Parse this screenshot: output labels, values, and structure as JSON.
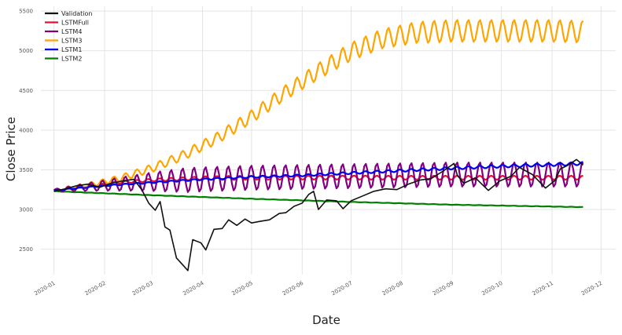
{
  "chart_data": {
    "type": "line",
    "xlabel": "Date",
    "ylabel": "Close Price",
    "x_ticks": [
      "2020-01",
      "2020-02",
      "2020-03",
      "2020-04",
      "2020-05",
      "2020-06",
      "2020-07",
      "2020-08",
      "2020-09",
      "2020-10",
      "2020-11",
      "2020-12"
    ],
    "y_ticks": [
      2500,
      3000,
      3500,
      4000,
      4500,
      5000,
      5500
    ],
    "xlim": [
      "2019-12-24",
      "2020-12-10"
    ],
    "ylim": [
      2180,
      5560
    ],
    "grid": true,
    "legend_position": "top-left",
    "series": [
      {
        "name": "Validation",
        "color": "#111111",
        "points": [
          [
            "2020-01-01",
            3230
          ],
          [
            "2020-01-08",
            3260
          ],
          [
            "2020-01-15",
            3300
          ],
          [
            "2020-01-22",
            3320
          ],
          [
            "2020-01-29",
            3280
          ],
          [
            "2020-02-05",
            3330
          ],
          [
            "2020-02-12",
            3360
          ],
          [
            "2020-02-19",
            3380
          ],
          [
            "2020-02-24",
            3240
          ],
          [
            "2020-02-28",
            3080
          ],
          [
            "2020-03-03",
            2990
          ],
          [
            "2020-03-06",
            3100
          ],
          [
            "2020-03-09",
            2780
          ],
          [
            "2020-03-12",
            2740
          ],
          [
            "2020-03-16",
            2390
          ],
          [
            "2020-03-20",
            2300
          ],
          [
            "2020-03-23",
            2230
          ],
          [
            "2020-03-26",
            2620
          ],
          [
            "2020-03-31",
            2580
          ],
          [
            "2020-04-03",
            2490
          ],
          [
            "2020-04-08",
            2750
          ],
          [
            "2020-04-13",
            2760
          ],
          [
            "2020-04-17",
            2870
          ],
          [
            "2020-04-22",
            2800
          ],
          [
            "2020-04-27",
            2880
          ],
          [
            "2020-05-01",
            2830
          ],
          [
            "2020-05-06",
            2850
          ],
          [
            "2020-05-12",
            2870
          ],
          [
            "2020-05-18",
            2950
          ],
          [
            "2020-05-22",
            2960
          ],
          [
            "2020-05-27",
            3040
          ],
          [
            "2020-06-01",
            3080
          ],
          [
            "2020-06-05",
            3190
          ],
          [
            "2020-06-08",
            3230
          ],
          [
            "2020-06-11",
            3000
          ],
          [
            "2020-06-16",
            3120
          ],
          [
            "2020-06-22",
            3110
          ],
          [
            "2020-06-26",
            3010
          ],
          [
            "2020-07-01",
            3110
          ],
          [
            "2020-07-08",
            3170
          ],
          [
            "2020-07-15",
            3230
          ],
          [
            "2020-07-22",
            3260
          ],
          [
            "2020-07-29",
            3250
          ],
          [
            "2020-08-05",
            3320
          ],
          [
            "2020-08-12",
            3370
          ],
          [
            "2020-08-19",
            3390
          ],
          [
            "2020-08-26",
            3480
          ],
          [
            "2020-09-02",
            3580
          ],
          [
            "2020-09-04",
            3430
          ],
          [
            "2020-09-08",
            3330
          ],
          [
            "2020-09-15",
            3400
          ],
          [
            "2020-09-23",
            3240
          ],
          [
            "2020-09-30",
            3360
          ],
          [
            "2020-10-07",
            3420
          ],
          [
            "2020-10-12",
            3530
          ],
          [
            "2020-10-20",
            3440
          ],
          [
            "2020-10-28",
            3270
          ],
          [
            "2020-11-03",
            3370
          ],
          [
            "2020-11-06",
            3510
          ],
          [
            "2020-11-10",
            3550
          ],
          [
            "2020-11-16",
            3630
          ],
          [
            "2020-11-20",
            3560
          ]
        ]
      },
      {
        "name": "LSTMFull",
        "color": "#e8112d",
        "points": [
          [
            "2020-01-01",
            3240
          ],
          [
            "2020-01-20",
            3290
          ],
          [
            "2020-02-10",
            3340
          ],
          [
            "2020-03-01",
            3370
          ],
          [
            "2020-04-01",
            3395
          ],
          [
            "2020-05-01",
            3400
          ],
          [
            "2020-06-01",
            3402
          ],
          [
            "2020-07-01",
            3402
          ],
          [
            "2020-08-01",
            3400
          ],
          [
            "2020-09-01",
            3400
          ],
          [
            "2020-10-01",
            3400
          ],
          [
            "2020-11-20",
            3400
          ]
        ]
      },
      {
        "name": "LSTM4",
        "color": "#800080",
        "points": [
          [
            "2020-01-01",
            3240
          ],
          [
            "2020-01-20",
            3280
          ],
          [
            "2020-02-10",
            3320
          ],
          [
            "2020-03-01",
            3350
          ],
          [
            "2020-04-01",
            3380
          ],
          [
            "2020-05-01",
            3400
          ],
          [
            "2020-06-01",
            3410
          ],
          [
            "2020-07-01",
            3420
          ],
          [
            "2020-08-01",
            3430
          ],
          [
            "2020-09-01",
            3440
          ],
          [
            "2020-10-01",
            3440
          ],
          [
            "2020-11-20",
            3440
          ]
        ]
      },
      {
        "name": "LSTM3",
        "color": "#ffa500",
        "points": [
          [
            "2020-01-01",
            3240
          ],
          [
            "2020-01-20",
            3300
          ],
          [
            "2020-02-10",
            3390
          ],
          [
            "2020-03-01",
            3520
          ],
          [
            "2020-03-20",
            3680
          ],
          [
            "2020-04-10",
            3900
          ],
          [
            "2020-05-01",
            4170
          ],
          [
            "2020-05-20",
            4450
          ],
          [
            "2020-06-10",
            4730
          ],
          [
            "2020-07-01",
            4990
          ],
          [
            "2020-07-20",
            5150
          ],
          [
            "2020-08-10",
            5230
          ],
          [
            "2020-09-01",
            5250
          ],
          [
            "2020-10-01",
            5250
          ],
          [
            "2020-11-01",
            5250
          ],
          [
            "2020-11-20",
            5240
          ]
        ]
      },
      {
        "name": "LSTM1",
        "color": "#0000ee",
        "points": [
          [
            "2020-01-01",
            3240
          ],
          [
            "2020-02-01",
            3300
          ],
          [
            "2020-03-01",
            3340
          ],
          [
            "2020-04-01",
            3380
          ],
          [
            "2020-05-01",
            3410
          ],
          [
            "2020-06-01",
            3430
          ],
          [
            "2020-07-01",
            3460
          ],
          [
            "2020-08-01",
            3490
          ],
          [
            "2020-09-01",
            3520
          ],
          [
            "2020-10-01",
            3545
          ],
          [
            "2020-11-01",
            3565
          ],
          [
            "2020-11-20",
            3580
          ]
        ]
      },
      {
        "name": "LSTM2",
        "color": "#008000",
        "points": [
          [
            "2020-01-01",
            3230
          ],
          [
            "2020-03-01",
            3180
          ],
          [
            "2020-05-01",
            3135
          ],
          [
            "2020-07-01",
            3095
          ],
          [
            "2020-09-01",
            3060
          ],
          [
            "2020-11-20",
            3030
          ]
        ]
      }
    ]
  }
}
